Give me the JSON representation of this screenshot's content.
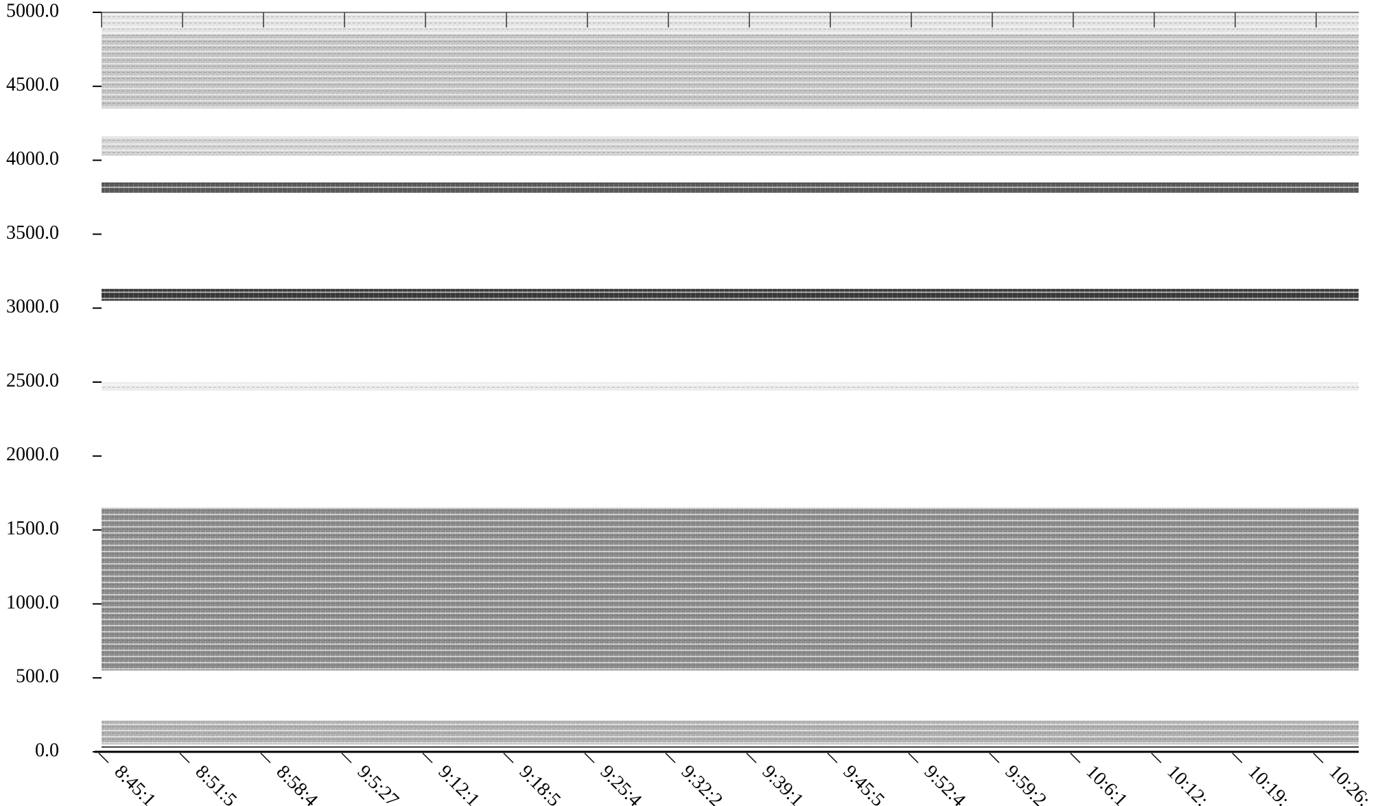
{
  "chart_data": {
    "type": "spectrogram",
    "ylim": [
      0,
      5000
    ],
    "yticks": [
      {
        "value": 0,
        "label": "0.0"
      },
      {
        "value": 500,
        "label": "500.0"
      },
      {
        "value": 1000,
        "label": "1000.0"
      },
      {
        "value": 1500,
        "label": "1500.0"
      },
      {
        "value": 2000,
        "label": "2000.0"
      },
      {
        "value": 2500,
        "label": "2500.0"
      },
      {
        "value": 3000,
        "label": "3000.0"
      },
      {
        "value": 3500,
        "label": "3500.0"
      },
      {
        "value": 4000,
        "label": "4000.0"
      },
      {
        "value": 4500,
        "label": "4500.0"
      },
      {
        "value": 5000,
        "label": "5000.0"
      }
    ],
    "categories": [
      "8:45:1",
      "8:51:5",
      "8:58:4",
      "9:5:27",
      "9:12:1",
      "9:18:5",
      "9:25:4",
      "9:32:2",
      "9:39:1",
      "9:45:5",
      "9:52:4",
      "9:59:2",
      "10:6:1",
      "10:12:",
      "10:19:",
      "10:26:"
    ],
    "bands": [
      {
        "range": [
          4850,
          5000
        ],
        "color": "#e4e4e4"
      },
      {
        "range": [
          4350,
          4850
        ],
        "color": "#c4c4c4"
      },
      {
        "range": [
          4030,
          4160
        ],
        "color": "#d2d2d2"
      },
      {
        "range": [
          3780,
          3850
        ],
        "color": "#5a5a5a"
      },
      {
        "range": [
          3050,
          3130
        ],
        "color": "#3a3a3a"
      },
      {
        "range": [
          2440,
          2500
        ],
        "color": "#ececec"
      },
      {
        "range": [
          550,
          1650
        ],
        "color": "#8c8c8c"
      },
      {
        "range": [
          50,
          210
        ],
        "color": "#b0b0b0"
      }
    ]
  }
}
